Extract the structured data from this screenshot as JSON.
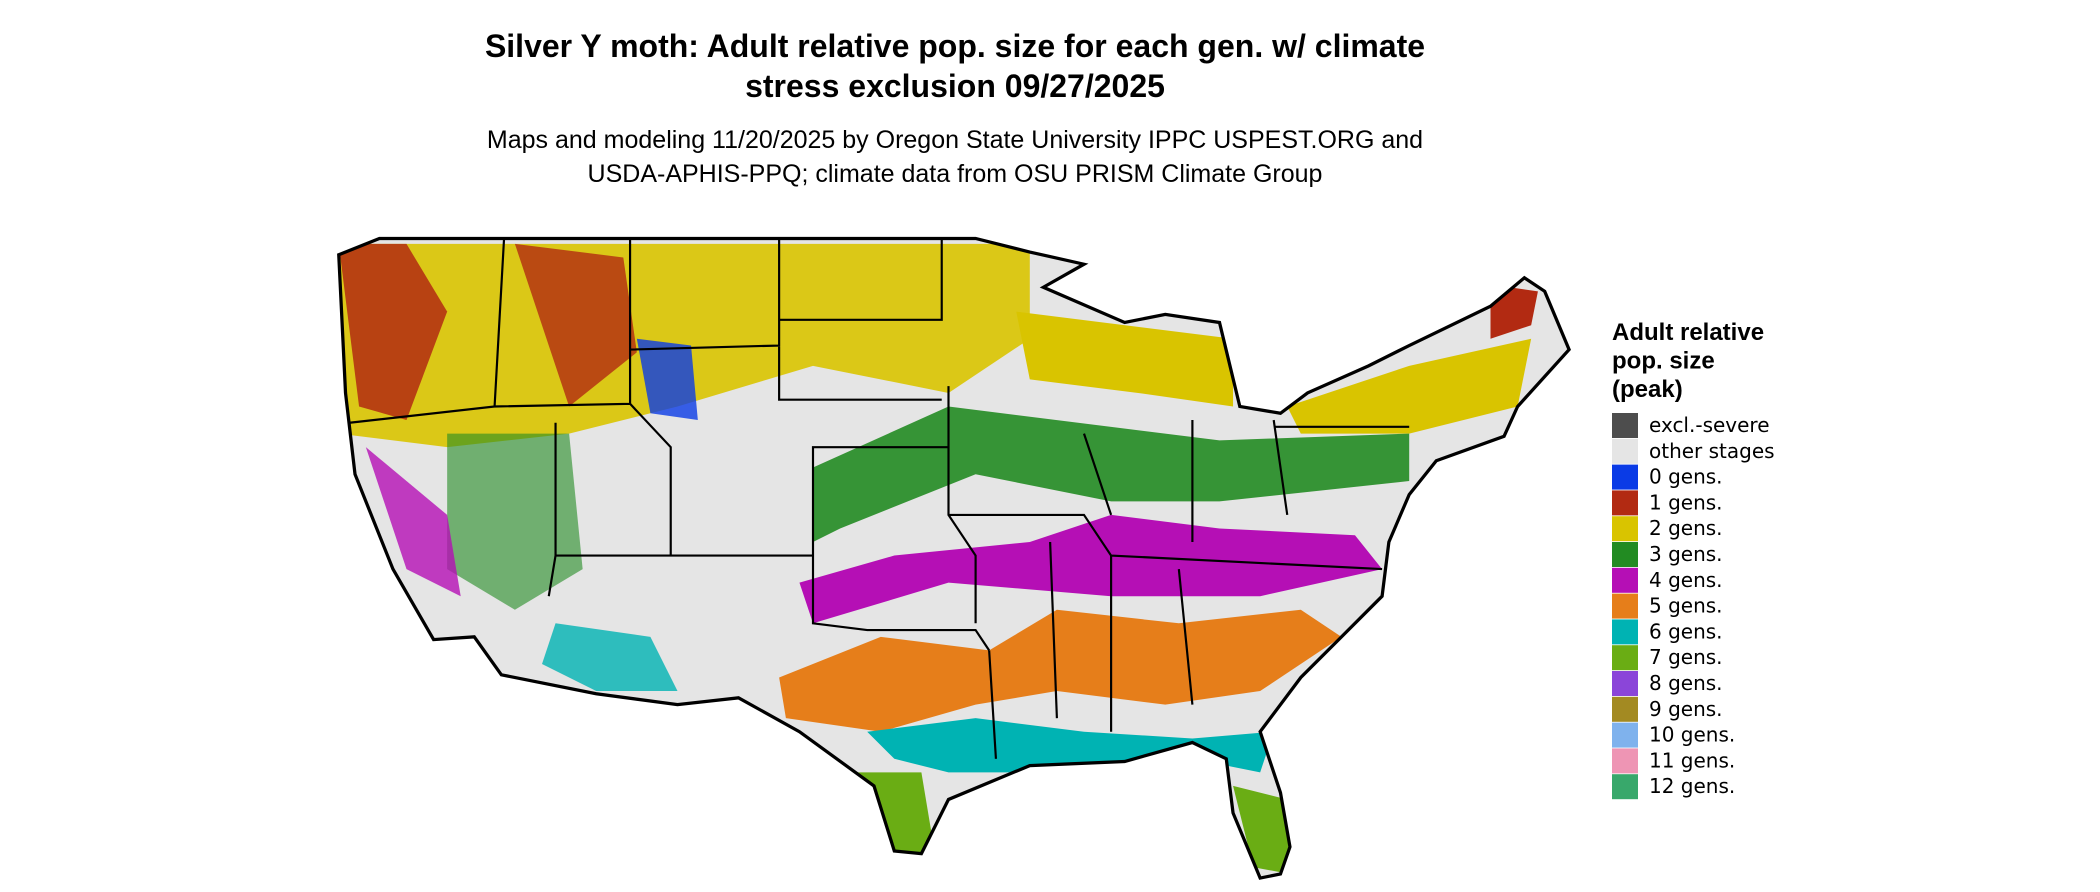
{
  "title": [
    "Silver Y moth: Adult relative pop. size for each gen. w/ climate",
    "stress exclusion 09/27/2025"
  ],
  "subtitle": [
    "Maps and modeling 11/20/2025 by Oregon State University IPPC USPEST.ORG and",
    "USDA-APHIS-PPQ; climate data from OSU PRISM Climate Group"
  ],
  "legend": {
    "title": [
      "Adult relative",
      "pop. size",
      "(peak)"
    ],
    "items": [
      {
        "label": "excl.-severe",
        "color": "#4d4d4d"
      },
      {
        "label": "other stages",
        "color": "#e5e5e5"
      },
      {
        "label": "0 gens.",
        "color": "#0a3be6"
      },
      {
        "label": "1 gens.",
        "color": "#b22a12"
      },
      {
        "label": "2 gens.",
        "color": "#d9c400"
      },
      {
        "label": "3 gens.",
        "color": "#228b22"
      },
      {
        "label": "4 gens.",
        "color": "#b50fb5"
      },
      {
        "label": "5 gens.",
        "color": "#e67e1a"
      },
      {
        "label": "6 gens.",
        "color": "#00b3b3"
      },
      {
        "label": "7 gens.",
        "color": "#6aad14"
      },
      {
        "label": "8 gens.",
        "color": "#8b45d9"
      },
      {
        "label": "9 gens.",
        "color": "#a38a22"
      },
      {
        "label": "10 gens.",
        "color": "#7fb2ed"
      },
      {
        "label": "11 gens.",
        "color": "#ee95b4"
      },
      {
        "label": "12 gens.",
        "color": "#38a86b"
      }
    ]
  }
}
